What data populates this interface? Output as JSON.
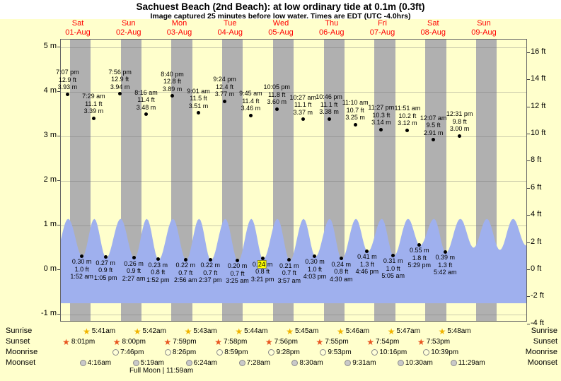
{
  "title": "Sachuest Beach (2nd Beach): at low ordinary tide at 0.1m (0.3ft)",
  "subtitle": "Image captured 25 minutes before low water. Times are EDT (UTC -4.0hrs)",
  "colors": {
    "page_bg": "#ffffcc",
    "header_bg": "#ffffff",
    "night_band": "#b0b0b0",
    "tide_fill": "#9fb0ee",
    "day_label": "#ff0000",
    "text": "#000000",
    "highlight": "#ffff00",
    "sunrise_star": "#f0b400",
    "sunset_star": "#e8541f",
    "moonrise_circle": "#ffffd8",
    "moonset_circle": "#c9c9c9"
  },
  "chart_data": {
    "type": "area",
    "title": "Sachuest Beach (2nd Beach): at low ordinary tide at 0.1m (0.3ft)",
    "x_axis": {
      "unit": "hours_from_01_Aug_00:00",
      "start_offset_hours": -7.7,
      "end_offset_hours": 213.5,
      "days": [
        {
          "name": "Sat",
          "date": "01-Aug",
          "t": 0
        },
        {
          "name": "Sun",
          "date": "02-Aug",
          "t": 24
        },
        {
          "name": "Mon",
          "date": "03-Aug",
          "t": 48
        },
        {
          "name": "Tue",
          "date": "04-Aug",
          "t": 72
        },
        {
          "name": "Wed",
          "date": "05-Aug",
          "t": 96
        },
        {
          "name": "Thu",
          "date": "06-Aug",
          "t": 120
        },
        {
          "name": "Fri",
          "date": "07-Aug",
          "t": 144
        },
        {
          "name": "Sat",
          "date": "08-Aug",
          "t": 168
        },
        {
          "name": "Sun",
          "date": "09-Aug",
          "t": 192
        }
      ]
    },
    "y_axis": {
      "left_unit": "m",
      "right_unit": "ft",
      "ticks_m": [
        {
          "v": 5,
          "label": "5 m"
        },
        {
          "v": 4,
          "label": "4 m"
        },
        {
          "v": 3,
          "label": "3 m"
        },
        {
          "v": 2,
          "label": "2 m"
        },
        {
          "v": 1,
          "label": "1 m"
        },
        {
          "v": 0,
          "label": "0 m"
        },
        {
          "v": -1,
          "label": "-1 m"
        }
      ],
      "ticks_ft": [
        {
          "v": 16,
          "label": "16 ft"
        },
        {
          "v": 14,
          "label": "14 ft"
        },
        {
          "v": 12,
          "label": "12 ft"
        },
        {
          "v": 10,
          "label": "10 ft"
        },
        {
          "v": 8,
          "label": "8 ft"
        },
        {
          "v": 6,
          "label": "6 ft"
        },
        {
          "v": 4,
          "label": "4 ft"
        },
        {
          "v": 2,
          "label": "2 ft"
        },
        {
          "v": 0,
          "label": "0 ft"
        },
        {
          "v": -2,
          "label": "-2 ft"
        },
        {
          "v": -4,
          "label": "-4 ft"
        }
      ]
    },
    "high_tides": [
      {
        "t": -4.88,
        "time": "7:07 pm",
        "ft": "12.9 ft",
        "m": "3.93 m",
        "m_val": 3.93
      },
      {
        "t": 7.48,
        "time": "7:29 am",
        "ft": "11.1 ft",
        "m": "3.39 m",
        "m_val": 3.39
      },
      {
        "t": 19.93,
        "time": "7:56 pm",
        "ft": "12.9 ft",
        "m": "3.94 m",
        "m_val": 3.94
      },
      {
        "t": 32.27,
        "time": "8:16 am",
        "ft": "11.4 ft",
        "m": "3.48 m",
        "m_val": 3.48
      },
      {
        "t": 44.67,
        "time": "8:40 pm",
        "ft": "12.8 ft",
        "m": "3.89 m",
        "m_val": 3.89
      },
      {
        "t": 57.02,
        "time": "9:01 am",
        "ft": "11.5 ft",
        "m": "3.51 m",
        "m_val": 3.51
      },
      {
        "t": 69.4,
        "time": "9:24 pm",
        "ft": "12.4 ft",
        "m": "3.77 m",
        "m_val": 3.77
      },
      {
        "t": 81.75,
        "time": "9:45 am",
        "ft": "11.4 ft",
        "m": "3.46 m",
        "m_val": 3.46
      },
      {
        "t": 94.08,
        "time": "10:05 pm",
        "ft": "11.8 ft",
        "m": "3.60 m",
        "m_val": 3.6
      },
      {
        "t": 106.45,
        "time": "10:27 am",
        "ft": "11.1 ft",
        "m": "3.37 m",
        "m_val": 3.37
      },
      {
        "t": 118.77,
        "time": "10:46 pm",
        "ft": "11.1 ft",
        "m": "3.38 m",
        "m_val": 3.38
      },
      {
        "t": 131.17,
        "time": "11:10 am",
        "ft": "10.7 ft",
        "m": "3.25 m",
        "m_val": 3.25
      },
      {
        "t": 143.45,
        "time": "11:27 pm",
        "ft": "10.3 ft",
        "m": "3.14 m",
        "m_val": 3.14
      },
      {
        "t": 155.85,
        "time": "11:51 am",
        "ft": "10.2 ft",
        "m": "3.12 m",
        "m_val": 3.12
      },
      {
        "t": 168.12,
        "time": "12:07 am",
        "ft": "9.5 ft",
        "m": "2.91 m",
        "m_val": 2.91
      },
      {
        "t": 180.52,
        "time": "12:31 pm",
        "ft": "9.8 ft",
        "m": "3.00 m",
        "m_val": 3.0
      }
    ],
    "low_tides": [
      {
        "t": 1.87,
        "m": "0.30 m",
        "ft": "1.0 ft",
        "time": "1:52 am",
        "m_val": 0.3
      },
      {
        "t": 13.08,
        "m": "0.27 m",
        "ft": "0.9 ft",
        "time": "1:05 pm",
        "m_val": 0.27
      },
      {
        "t": 26.45,
        "m": "0.26 m",
        "ft": "0.9 ft",
        "time": "2:27 am",
        "m_val": 0.26
      },
      {
        "t": 37.87,
        "m": "0.23 m",
        "ft": "0.8 ft",
        "time": "1:52 pm",
        "m_val": 0.23
      },
      {
        "t": 50.93,
        "m": "0.22 m",
        "ft": "0.7 ft",
        "time": "2:56 am",
        "m_val": 0.22
      },
      {
        "t": 62.62,
        "m": "0.22 m",
        "ft": "0.7 ft",
        "time": "2:37 pm",
        "m_val": 0.22
      },
      {
        "t": 75.42,
        "m": "0.20 m",
        "ft": "0.7 ft",
        "time": "3:25 am",
        "m_val": 0.2
      },
      {
        "t": 87.35,
        "m": "0.24 m",
        "ft": "0.8 ft",
        "time": "3:21 pm",
        "m_val": 0.24,
        "highlight": "24"
      },
      {
        "t": 99.95,
        "m": "0.21 m",
        "ft": "0.7 ft",
        "time": "3:57 am",
        "m_val": 0.21
      },
      {
        "t": 112.05,
        "m": "0.30 m",
        "ft": "1.0 ft",
        "time": "4:03 pm",
        "m_val": 0.3
      },
      {
        "t": 124.5,
        "m": "0.24 m",
        "ft": "0.8 ft",
        "time": "4:30 am",
        "m_val": 0.24
      },
      {
        "t": 136.77,
        "m": "0.41 m",
        "ft": "1.3 ft",
        "time": "4:46 pm",
        "m_val": 0.41
      },
      {
        "t": 149.08,
        "m": "0.31 m",
        "ft": "1.0 ft",
        "time": "5:05 am",
        "m_val": 0.31
      },
      {
        "t": 161.48,
        "m": "0.55 m",
        "ft": "1.8 ft",
        "time": "5:29 pm",
        "m_val": 0.55
      },
      {
        "t": 173.7,
        "m": "0.39 m",
        "ft": "1.3 ft",
        "time": "5:42 am",
        "m_val": 0.39
      }
    ]
  },
  "astro": {
    "rows": [
      {
        "id": "sunrise",
        "label": "Sunrise",
        "icon": "sunrise-star",
        "times": [
          {
            "t": 5.68,
            "text": "5:41am"
          },
          {
            "t": 29.7,
            "text": "5:42am"
          },
          {
            "t": 53.72,
            "text": "5:43am"
          },
          {
            "t": 77.73,
            "text": "5:44am"
          },
          {
            "t": 101.75,
            "text": "5:45am"
          },
          {
            "t": 125.77,
            "text": "5:46am"
          },
          {
            "t": 149.78,
            "text": "5:47am"
          },
          {
            "t": 173.8,
            "text": "5:48am"
          }
        ]
      },
      {
        "id": "sunset",
        "label": "Sunset",
        "icon": "sunset-star",
        "times": [
          {
            "t": -3.98,
            "text": "8:01pm"
          },
          {
            "t": 20.0,
            "text": "8:00pm"
          },
          {
            "t": 43.98,
            "text": "7:59pm"
          },
          {
            "t": 67.97,
            "text": "7:58pm"
          },
          {
            "t": 91.93,
            "text": "7:56pm"
          },
          {
            "t": 115.92,
            "text": "7:55pm"
          },
          {
            "t": 139.9,
            "text": "7:54pm"
          },
          {
            "t": 163.88,
            "text": "7:53pm"
          }
        ]
      },
      {
        "id": "moonrise",
        "label": "Moonrise",
        "icon": "moonrise-circle",
        "times": [
          {
            "t": 19.77,
            "text": "7:46pm"
          },
          {
            "t": 44.43,
            "text": "8:26pm"
          },
          {
            "t": 68.98,
            "text": "8:59pm"
          },
          {
            "t": 93.47,
            "text": "9:28pm"
          },
          {
            "t": 117.88,
            "text": "9:53pm"
          },
          {
            "t": 142.27,
            "text": "10:16pm"
          },
          {
            "t": 166.65,
            "text": "10:39pm"
          }
        ]
      },
      {
        "id": "moonset",
        "label": "Moonset",
        "icon": "moonset-circle",
        "times": [
          {
            "t": 4.27,
            "text": "4:16am"
          },
          {
            "t": 29.32,
            "text": "5:19am"
          },
          {
            "t": 54.4,
            "text": "6:24am"
          },
          {
            "t": 79.47,
            "text": "7:28am"
          },
          {
            "t": 104.5,
            "text": "8:30am"
          },
          {
            "t": 129.52,
            "text": "9:31am"
          },
          {
            "t": 154.5,
            "text": "10:30am"
          },
          {
            "t": 179.48,
            "text": "11:29am"
          }
        ]
      }
    ],
    "full_moon_note": "Full Moon | 11:59am"
  }
}
